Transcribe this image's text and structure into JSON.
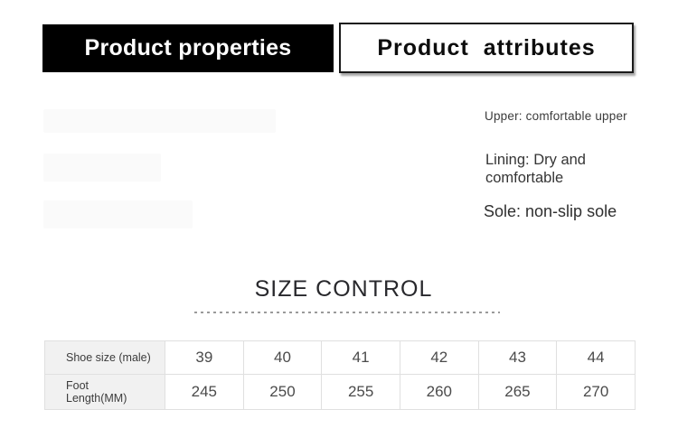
{
  "tabs": {
    "left": {
      "label": "Product properties"
    },
    "right": {
      "label": "Product attributes"
    }
  },
  "attributes": {
    "upper": "Upper: comfortable upper",
    "lining": "Lining: Dry and comfortable",
    "sole": "Sole: non-slip sole"
  },
  "size_section": {
    "title": "SIZE CONTROL"
  },
  "size_table": {
    "row_labels": {
      "shoe_size": "Shoe size (male)",
      "foot_length_line1": "Foot",
      "foot_length_line2": "Length(MM)"
    },
    "shoe_sizes": [
      "39",
      "40",
      "41",
      "42",
      "43",
      "44"
    ],
    "foot_lengths": [
      "245",
      "250",
      "255",
      "260",
      "265",
      "270"
    ]
  },
  "colors": {
    "active_tab_bg": "#000000",
    "active_tab_text": "#ffffff",
    "inactive_tab_border": "#1a1a1a",
    "table_header_bg": "#f1f1f1",
    "table_border": "#e0e0e0",
    "divider_dash": "#9a9a9a"
  }
}
